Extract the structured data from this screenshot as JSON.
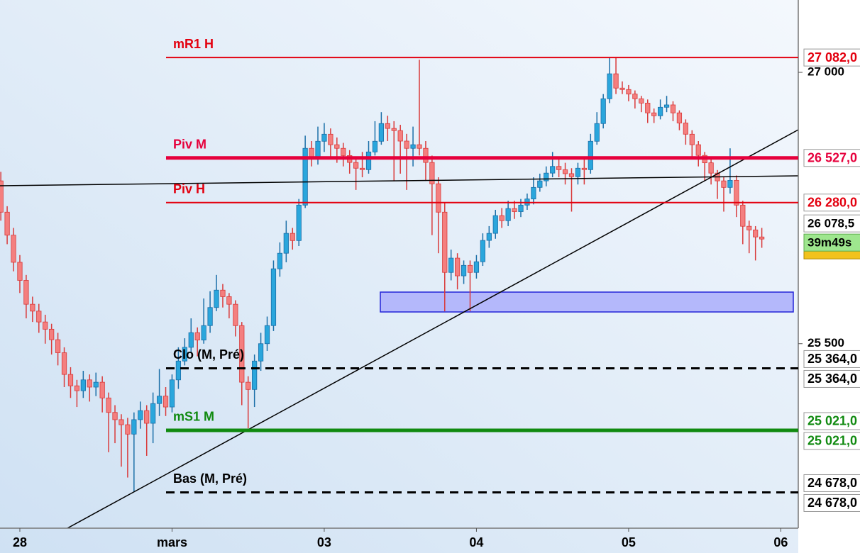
{
  "chart_data": {
    "type": "candlestick",
    "up_color": "#2aa6dc",
    "up_border": "#1b6fa8",
    "down_color": "#f47f7f",
    "down_border": "#d93a3a",
    "xlim": [
      -0.13,
      125.75
    ],
    "ylim": [
      24480,
      27400
    ],
    "xticks": [
      {
        "value": 3,
        "label": "28"
      },
      {
        "value": 27,
        "label": "mars"
      },
      {
        "value": 51,
        "label": "03"
      },
      {
        "value": 75,
        "label": "04"
      },
      {
        "value": 99,
        "label": "05"
      },
      {
        "value": 123,
        "label": "06"
      }
    ],
    "yticks": [
      {
        "value": 27000,
        "label": "27 000"
      },
      {
        "value": 25500,
        "label": "25 500"
      }
    ],
    "open": [
      26400,
      26227,
      26100,
      25950,
      25850,
      25718,
      25680,
      25620,
      25580,
      25522,
      25450,
      25330,
      25267,
      25240,
      25300,
      25260,
      25287,
      25200,
      25120,
      25080,
      25052,
      25000,
      25080,
      25130,
      25060,
      25169,
      25210,
      25150,
      25300,
      25404,
      25480,
      25561,
      25520,
      25600,
      25700,
      25796,
      25760,
      25718,
      25600,
      25287,
      25247,
      25404,
      25500,
      25600,
      25914,
      26000,
      26110,
      26070,
      26266,
      26580,
      26520,
      26619,
      26658,
      26600,
      26580,
      26540,
      26502,
      26470,
      26462,
      26560,
      26619,
      26717,
      26690,
      26678,
      26620,
      26580,
      26600,
      26580,
      26502,
      26384,
      26227,
      25894,
      25973,
      25875,
      25933,
      25894,
      25953,
      26071,
      26110,
      26208,
      26180,
      26247,
      26230,
      26266,
      26300,
      26364,
      26400,
      26443,
      26480,
      26462,
      26440,
      26423,
      26470,
      26462,
      26619,
      26717,
      26854,
      26992,
      26913,
      26905,
      26880,
      26854,
      26830,
      26776,
      26760,
      26807,
      26820,
      26776,
      26720,
      26658,
      26600,
      26541,
      26500,
      26443,
      26400,
      26364,
      26403,
      26266,
      26149,
      26129,
      26090
    ],
    "high": [
      26450,
      26260,
      26140,
      25990,
      25880,
      25760,
      25720,
      25660,
      25610,
      25560,
      25480,
      25370,
      25300,
      25350,
      25330,
      25340,
      25320,
      25230,
      25160,
      25110,
      25090,
      25120,
      25180,
      25160,
      25230,
      25360,
      25260,
      25330,
      25480,
      25530,
      25640,
      25590,
      25750,
      25790,
      25880,
      25830,
      25780,
      25740,
      25620,
      25320,
      25440,
      25560,
      25650,
      25960,
      26060,
      26180,
      26140,
      26300,
      26650,
      26620,
      26700,
      26720,
      26690,
      26640,
      26610,
      26570,
      26520,
      26560,
      26620,
      26730,
      26780,
      26760,
      26730,
      26710,
      26660,
      26700,
      27070,
      26620,
      26540,
      26420,
      26280,
      26020,
      26000,
      25960,
      25960,
      25990,
      26110,
      26150,
      26240,
      26250,
      26290,
      26290,
      26300,
      26330,
      26420,
      26440,
      26480,
      26560,
      26530,
      26500,
      26470,
      26500,
      26520,
      26660,
      26780,
      26880,
      27082,
      27082,
      26950,
      26930,
      26900,
      26870,
      26850,
      26800,
      26850,
      26870,
      26840,
      26790,
      26740,
      26680,
      26620,
      26560,
      26520,
      26460,
      26420,
      26580,
      26430,
      26290,
      26180,
      26150,
      26140
    ],
    "low": [
      26180,
      26050,
      25900,
      25780,
      25640,
      25620,
      25560,
      25500,
      25440,
      25380,
      25260,
      25200,
      25150,
      25200,
      25180,
      25210,
      25120,
      24900,
      24950,
      24820,
      24760,
      24680,
      25030,
      24880,
      24950,
      25100,
      25100,
      25120,
      25250,
      25380,
      25450,
      25430,
      25500,
      25560,
      25680,
      25700,
      25640,
      25540,
      25160,
      25032,
      25150,
      25350,
      25460,
      25570,
      25870,
      25950,
      26020,
      26040,
      26250,
      26480,
      26490,
      26560,
      26520,
      26500,
      26480,
      26440,
      26350,
      26420,
      26440,
      26540,
      26600,
      26620,
      26400,
      26440,
      26350,
      26480,
      26540,
      26400,
      26100,
      26000,
      25679,
      25850,
      25800,
      25830,
      25679,
      25860,
      25930,
      26030,
      26080,
      26140,
      26150,
      26190,
      26200,
      26240,
      26270,
      26340,
      26370,
      26420,
      26420,
      26380,
      26230,
      26380,
      26380,
      26440,
      26600,
      26690,
      26830,
      26880,
      26880,
      26840,
      26800,
      26780,
      26720,
      26720,
      26740,
      26780,
      26730,
      26680,
      26600,
      26520,
      26480,
      26400,
      26380,
      26300,
      26230,
      26330,
      26200,
      26050,
      26000,
      25960,
      26030
    ],
    "close": [
      26227,
      26100,
      25950,
      25850,
      25718,
      25680,
      25620,
      25580,
      25522,
      25450,
      25330,
      25267,
      25240,
      25300,
      25260,
      25287,
      25200,
      25120,
      25080,
      25052,
      25000,
      25080,
      25130,
      25060,
      25169,
      25210,
      25150,
      25300,
      25404,
      25480,
      25561,
      25520,
      25600,
      25700,
      25796,
      25760,
      25718,
      25600,
      25287,
      25247,
      25404,
      25500,
      25600,
      25914,
      26000,
      26110,
      26070,
      26266,
      26580,
      26520,
      26619,
      26658,
      26600,
      26580,
      26540,
      26502,
      26470,
      26462,
      26560,
      26619,
      26717,
      26690,
      26678,
      26620,
      26580,
      26600,
      26580,
      26502,
      26384,
      26227,
      25894,
      25973,
      25875,
      25933,
      25894,
      25953,
      26071,
      26110,
      26208,
      26180,
      26247,
      26230,
      26266,
      26300,
      26364,
      26400,
      26443,
      26480,
      26462,
      26440,
      26423,
      26470,
      26462,
      26619,
      26717,
      26854,
      26992,
      26913,
      26905,
      26880,
      26854,
      26830,
      26776,
      26760,
      26807,
      26820,
      26776,
      26720,
      26658,
      26600,
      26541,
      26500,
      26443,
      26400,
      26364,
      26403,
      26266,
      26149,
      26129,
      26090,
      26078.5
    ],
    "levels": [
      {
        "label": "mR1 H",
        "value": 27082,
        "value_label": "27 082,0",
        "color": "#e3000f",
        "width": 2,
        "dashed": false,
        "double_tag": false
      },
      {
        "label": "Piv M",
        "value": 26527,
        "value_label": "26 527,0",
        "color": "#e6003c",
        "width": 5,
        "dashed": false,
        "double_tag": false
      },
      {
        "label": "Piv H",
        "value": 26280,
        "value_label": "26 280,0",
        "color": "#e3000f",
        "width": 2,
        "dashed": false,
        "double_tag": false
      },
      {
        "label": "Clo (M, Pré)",
        "value": 25364,
        "value_label": "25 364,0",
        "color": "#000000",
        "width": 3,
        "dashed": true,
        "double_tag": true
      },
      {
        "label": "mS1 M",
        "value": 25021,
        "value_label": "25 021,0",
        "color": "#108a10",
        "width": 5,
        "dashed": false,
        "double_tag": true
      },
      {
        "label": "Bas (M, Pré)",
        "value": 24678,
        "value_label": "24 678,0",
        "color": "#000000",
        "width": 3,
        "dashed": true,
        "double_tag": true
      }
    ],
    "last_price_label": "26 078,5",
    "countdown": "39m49s"
  }
}
